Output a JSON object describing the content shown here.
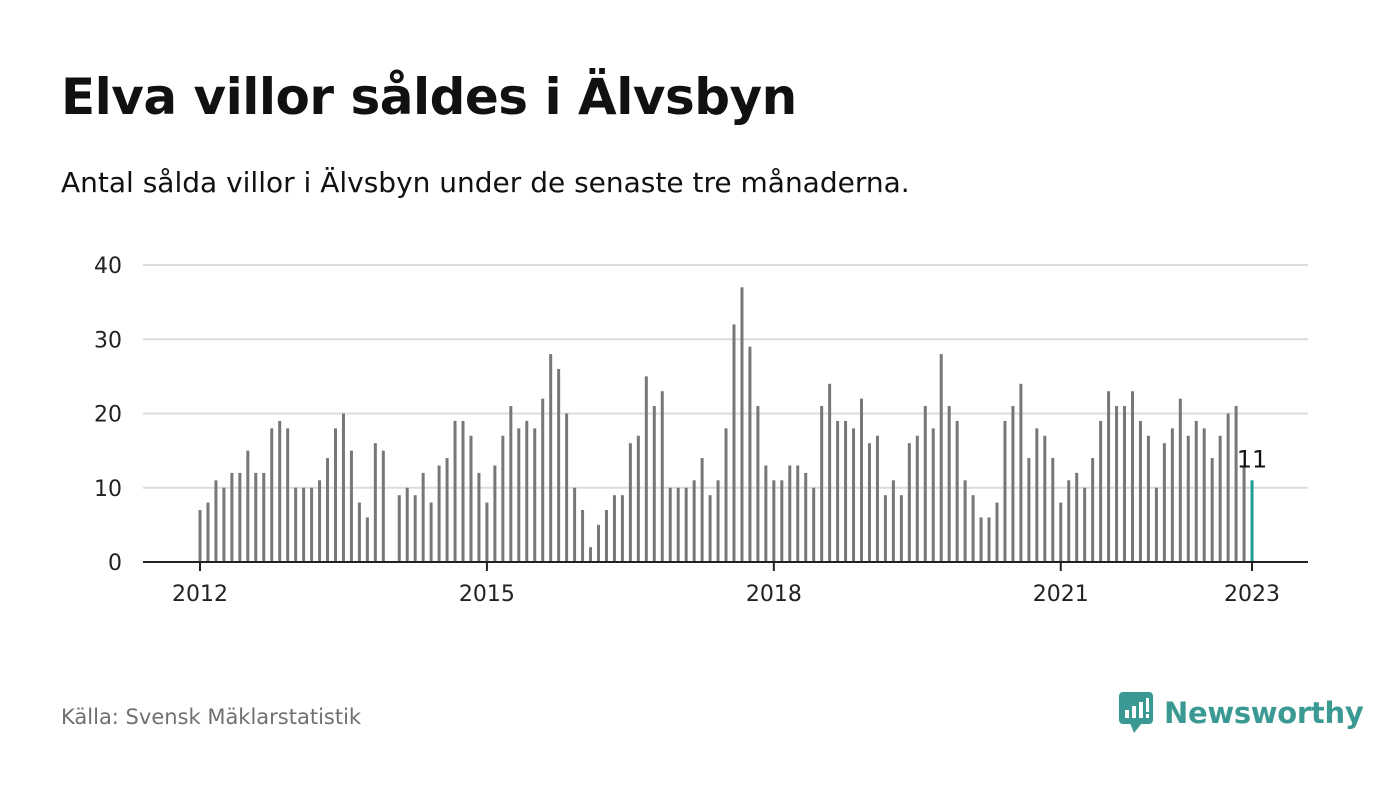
{
  "chart_data": {
    "type": "bar",
    "title": "Elva villor såldes i Älvsbyn",
    "subtitle": "Antal sålda villor i Älvsbyn under de senaste tre månaderna.",
    "xlabel": "",
    "ylabel": "",
    "ylim": [
      0,
      40
    ],
    "yticks": [
      0,
      10,
      20,
      30,
      40
    ],
    "xticks": [
      {
        "label": "2012",
        "index": 0
      },
      {
        "label": "2015",
        "index": 36
      },
      {
        "label": "2018",
        "index": 72
      },
      {
        "label": "2021",
        "index": 108
      },
      {
        "label": "2023",
        "index": 132
      }
    ],
    "grid": true,
    "start": "2012-01",
    "frequency": "monthly",
    "values": [
      7,
      8,
      11,
      10,
      12,
      12,
      15,
      12,
      12,
      18,
      19,
      18,
      10,
      10,
      10,
      11,
      14,
      18,
      20,
      15,
      8,
      6,
      16,
      15,
      null,
      9,
      10,
      9,
      12,
      8,
      13,
      14,
      19,
      19,
      17,
      12,
      8,
      13,
      17,
      21,
      18,
      19,
      18,
      22,
      28,
      26,
      20,
      10,
      7,
      2,
      5,
      7,
      9,
      9,
      16,
      17,
      25,
      21,
      23,
      10,
      10,
      10,
      11,
      14,
      9,
      11,
      18,
      32,
      37,
      29,
      21,
      13,
      11,
      11,
      13,
      13,
      12,
      10,
      21,
      24,
      19,
      19,
      18,
      22,
      16,
      17,
      9,
      11,
      9,
      16,
      17,
      21,
      18,
      28,
      21,
      19,
      11,
      9,
      6,
      6,
      8,
      19,
      21,
      24,
      14,
      18,
      17,
      14,
      8,
      11,
      12,
      10,
      14,
      19,
      23,
      21,
      21,
      23,
      19,
      17,
      10,
      16,
      18,
      22,
      17,
      19,
      18,
      14,
      17,
      20,
      21,
      13,
      11
    ],
    "highlight": {
      "index": 132,
      "label": "11",
      "color": "#1f9e97"
    },
    "bar_color": "#77777b"
  },
  "source": "Källa: Svensk Mäklarstatistik",
  "brand": {
    "name": "Newsworthy",
    "icon": "newsworthy-logo-icon",
    "color": "#3a9a93"
  }
}
